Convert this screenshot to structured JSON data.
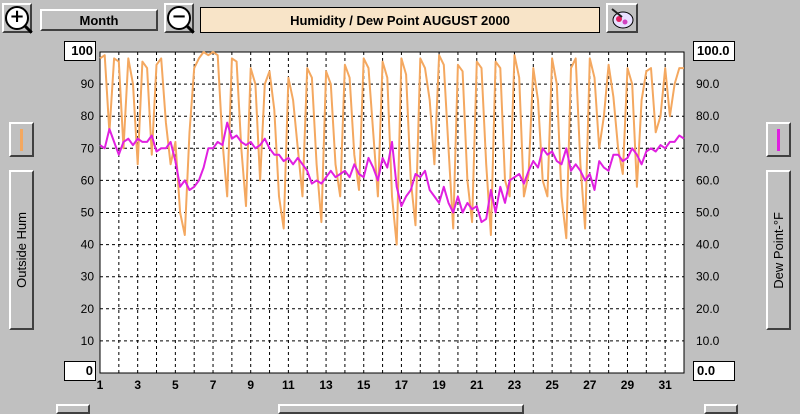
{
  "toolbar": {
    "zoom_in_symbol": "+",
    "zoom_out_symbol": "−",
    "period_label": "Month",
    "title": "Humidity  /  Dew Point   AUGUST 2000"
  },
  "left_axis": {
    "max_value": "100",
    "min_value": "0",
    "label": "Outside Hum",
    "color": "#f4a860"
  },
  "right_axis": {
    "max_value": "100.0",
    "min_value": "0.0",
    "label": "Dew Point-°F",
    "color": "#e020e0"
  },
  "chart_data": {
    "type": "line",
    "title": "Humidity  /  Dew Point   AUGUST 2000",
    "xlabel": "",
    "ylabel": "Outside Hum",
    "y2label": "Dew Point-°F",
    "xlim": [
      1,
      32
    ],
    "ylim": [
      0,
      100
    ],
    "y2lim": [
      0,
      100
    ],
    "x_ticks": [
      1,
      3,
      5,
      7,
      9,
      11,
      13,
      15,
      17,
      19,
      21,
      23,
      25,
      27,
      29,
      31
    ],
    "y_ticks": [
      10,
      20,
      30,
      40,
      50,
      60,
      70,
      80,
      90
    ],
    "y2_ticks": [
      "10.0",
      "20.0",
      "30.0",
      "40.0",
      "50.0",
      "60.0",
      "70.0",
      "80.0",
      "90.0"
    ],
    "grid": true,
    "series": [
      {
        "name": "Outside Hum",
        "color": "#f4a860",
        "axis": "left",
        "x": [
          1,
          1.25,
          1.5,
          1.75,
          2,
          2.25,
          2.5,
          2.75,
          3,
          3.25,
          3.5,
          3.75,
          4,
          4.25,
          4.5,
          4.75,
          5,
          5.25,
          5.5,
          5.75,
          6,
          6.25,
          6.5,
          6.75,
          7,
          7.25,
          7.5,
          7.75,
          8,
          8.25,
          8.5,
          8.75,
          9,
          9.25,
          9.5,
          9.75,
          10,
          10.25,
          10.5,
          10.75,
          11,
          11.25,
          11.5,
          11.75,
          12,
          12.25,
          12.5,
          12.75,
          13,
          13.25,
          13.5,
          13.75,
          14,
          14.25,
          14.5,
          14.75,
          15,
          15.25,
          15.5,
          15.75,
          16,
          16.25,
          16.5,
          16.75,
          17,
          17.25,
          17.5,
          17.75,
          18,
          18.25,
          18.5,
          18.75,
          19,
          19.25,
          19.5,
          19.75,
          20,
          20.25,
          20.5,
          20.75,
          21,
          21.25,
          21.5,
          21.75,
          22,
          22.25,
          22.5,
          22.75,
          23,
          23.25,
          23.5,
          23.75,
          24,
          24.25,
          24.5,
          24.75,
          25,
          25.25,
          25.5,
          25.75,
          26,
          26.25,
          26.5,
          26.75,
          27,
          27.25,
          27.5,
          27.75,
          28,
          28.25,
          28.5,
          28.75,
          29,
          29.25,
          29.5,
          29.75,
          30,
          30.25,
          30.5,
          30.75,
          31,
          31.25,
          31.5,
          31.75,
          32
        ],
        "values": [
          98,
          99,
          75,
          98,
          97,
          70,
          98,
          90,
          65,
          97,
          95,
          68,
          96,
          98,
          78,
          65,
          72,
          50,
          43,
          75,
          95,
          98,
          100,
          99,
          100,
          99,
          72,
          55,
          98,
          97,
          70,
          52,
          95,
          90,
          60,
          90,
          94,
          82,
          55,
          45,
          92,
          85,
          70,
          55,
          95,
          92,
          65,
          47,
          94,
          90,
          65,
          55,
          96,
          92,
          68,
          57,
          98,
          95,
          75,
          55,
          97,
          92,
          55,
          40,
          98,
          93,
          60,
          46,
          98,
          95,
          85,
          65,
          99,
          96,
          70,
          45,
          96,
          94,
          60,
          47,
          97,
          95,
          65,
          43,
          97,
          95,
          60,
          55,
          99,
          92,
          55,
          62,
          95,
          85,
          60,
          55,
          98,
          90,
          55,
          42,
          95,
          98,
          65,
          45,
          98,
          92,
          70,
          80,
          96,
          86,
          70,
          62,
          95,
          90,
          58,
          85,
          94,
          95,
          75,
          80,
          95,
          80,
          90,
          95,
          95
        ]
      },
      {
        "name": "Dew Point-°F",
        "color": "#e020e0",
        "axis": "right",
        "x": [
          1,
          1.25,
          1.5,
          1.75,
          2,
          2.25,
          2.5,
          2.75,
          3,
          3.25,
          3.5,
          3.75,
          4,
          4.25,
          4.5,
          4.75,
          5,
          5.25,
          5.5,
          5.75,
          6,
          6.25,
          6.5,
          6.75,
          7,
          7.25,
          7.5,
          7.75,
          8,
          8.25,
          8.5,
          8.75,
          9,
          9.25,
          9.5,
          9.75,
          10,
          10.25,
          10.5,
          10.75,
          11,
          11.25,
          11.5,
          11.75,
          12,
          12.25,
          12.5,
          12.75,
          13,
          13.25,
          13.5,
          13.75,
          14,
          14.25,
          14.5,
          14.75,
          15,
          15.25,
          15.5,
          15.75,
          16,
          16.25,
          16.5,
          16.75,
          17,
          17.25,
          17.5,
          17.75,
          18,
          18.25,
          18.5,
          18.75,
          19,
          19.25,
          19.5,
          19.75,
          20,
          20.25,
          20.5,
          20.75,
          21,
          21.25,
          21.5,
          21.75,
          22,
          22.25,
          22.5,
          22.75,
          23,
          23.25,
          23.5,
          23.75,
          24,
          24.25,
          24.5,
          24.75,
          25,
          25.25,
          25.5,
          25.75,
          26,
          26.25,
          26.5,
          26.75,
          27,
          27.25,
          27.5,
          27.75,
          28,
          28.25,
          28.5,
          28.75,
          29,
          29.25,
          29.5,
          29.75,
          30,
          30.25,
          30.5,
          30.75,
          31,
          31.25,
          31.5,
          31.75,
          32
        ],
        "values": [
          71,
          70,
          76,
          72,
          68,
          72,
          73,
          71,
          73,
          72,
          72,
          74,
          69,
          70,
          70,
          72,
          66,
          58,
          60,
          57,
          58,
          60,
          64,
          70,
          70,
          72,
          71,
          78,
          73,
          74,
          72,
          71,
          72,
          70,
          71,
          73,
          70,
          68,
          68,
          66,
          67,
          65,
          67,
          65,
          63,
          59,
          60,
          59,
          61,
          63,
          61,
          62,
          63,
          61,
          65,
          62,
          61,
          67,
          64,
          60,
          67,
          64,
          72,
          58,
          52,
          55,
          57,
          62,
          61,
          63,
          57,
          55,
          53,
          58,
          53,
          50,
          55,
          50,
          53,
          51,
          52,
          47,
          48,
          57,
          50,
          58,
          53,
          60,
          61,
          62,
          59,
          63,
          66,
          64,
          70,
          68,
          69,
          66,
          65,
          70,
          63,
          65,
          63,
          60,
          62,
          57,
          66,
          64,
          63,
          68,
          68,
          66,
          67,
          70,
          68,
          65,
          69,
          70,
          69,
          71,
          70,
          72,
          72,
          74,
          73
        ]
      }
    ]
  }
}
